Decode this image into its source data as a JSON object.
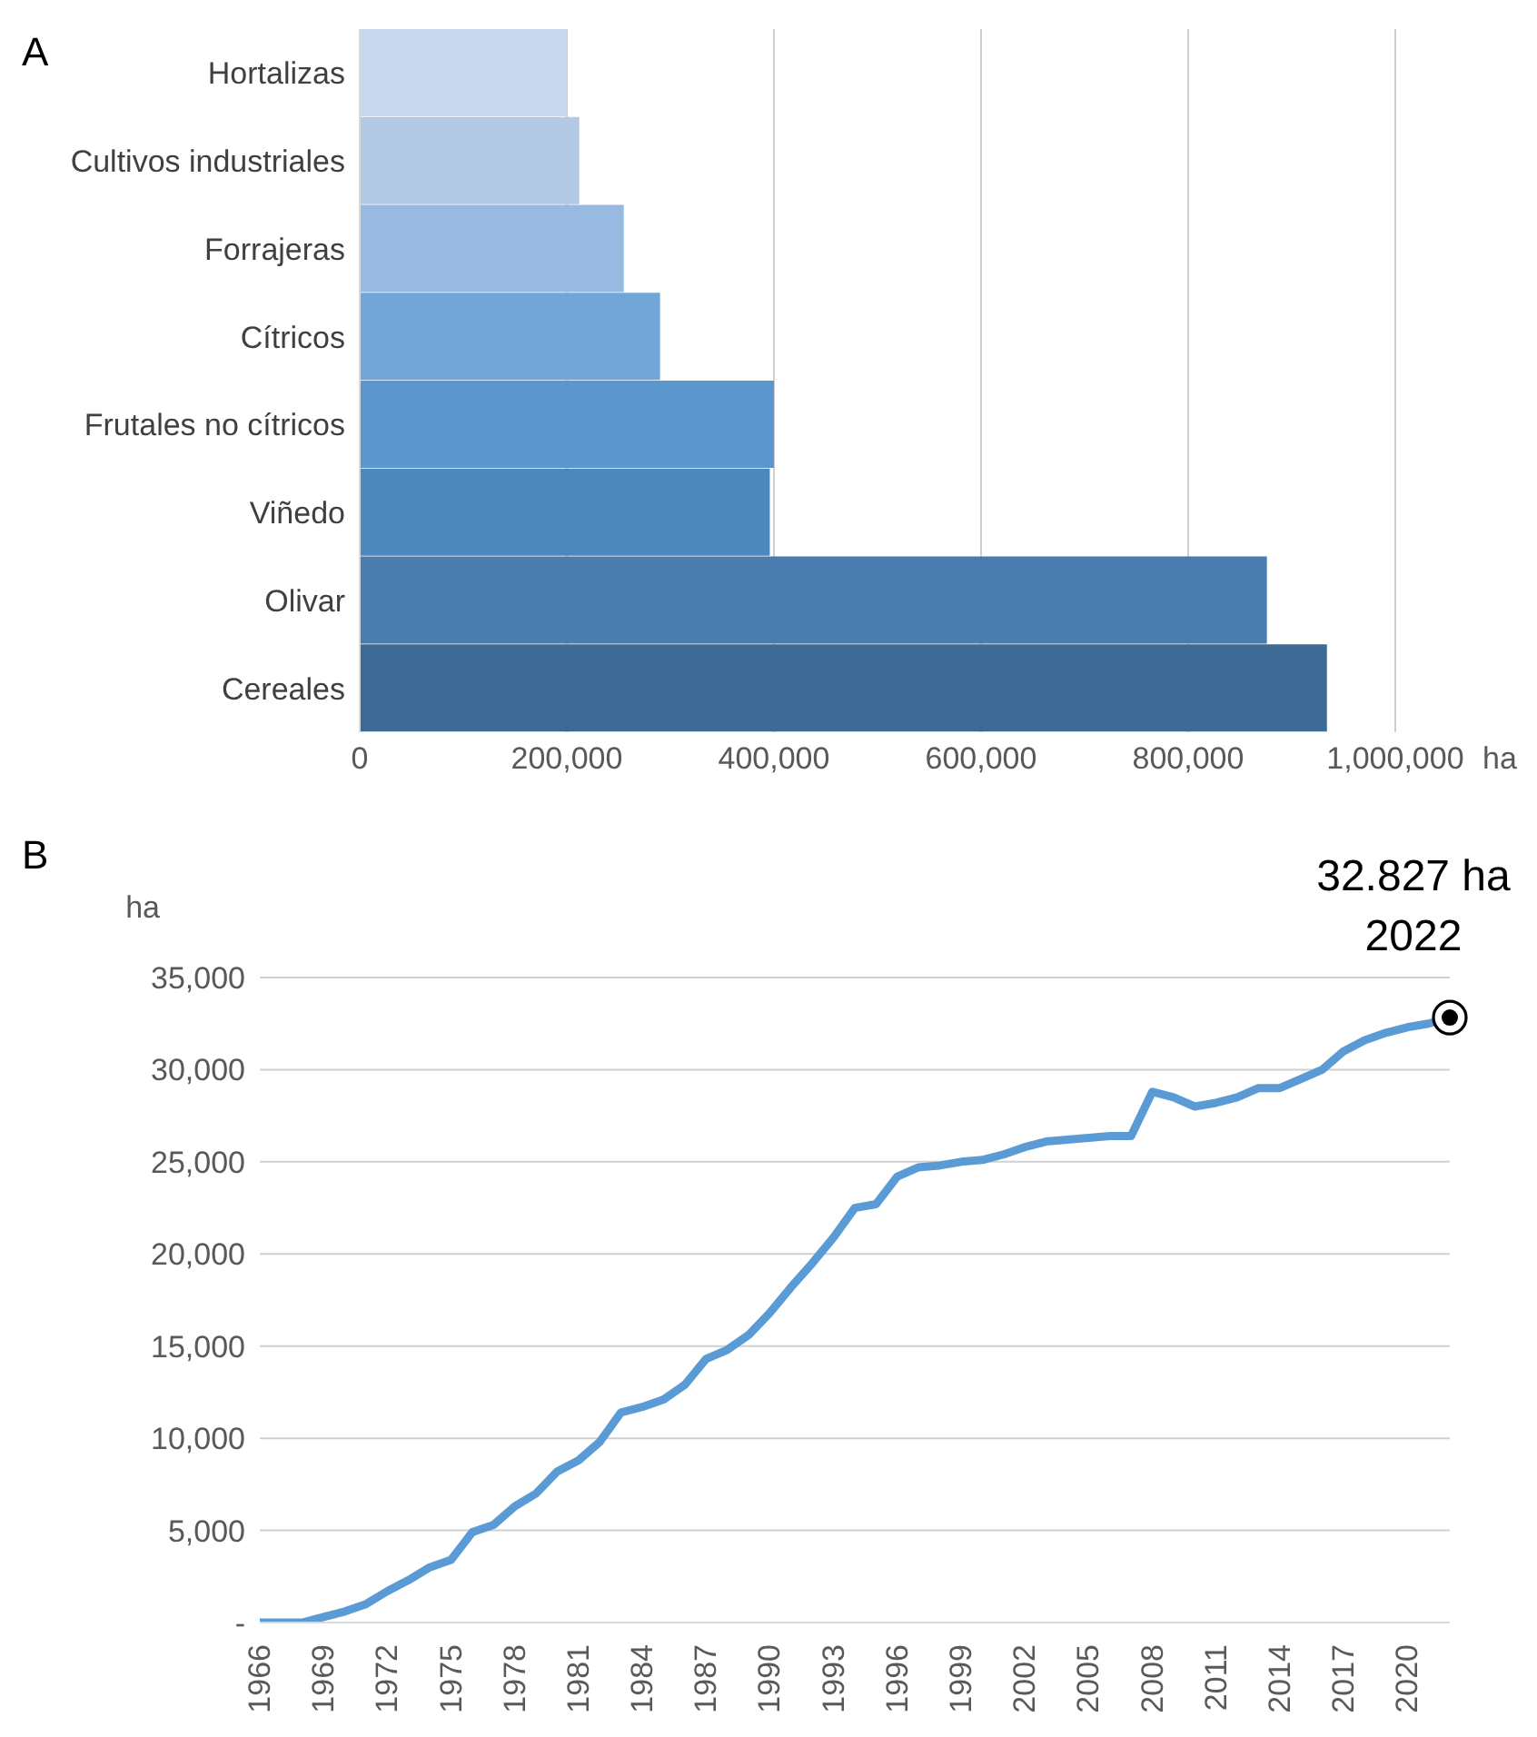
{
  "chart_data": [
    {
      "type": "bar",
      "orientation": "horizontal",
      "title": "A",
      "xlabel": "ha",
      "categories": [
        "Hortalizas",
        "Cultivos industriales",
        "Forrajeras",
        "Cítricos",
        "Frutales no cítricos",
        "Viñedo",
        "Olivar",
        "Cereales"
      ],
      "values": [
        200000,
        212000,
        255000,
        290000,
        400000,
        396000,
        876000,
        934000
      ],
      "colors": [
        "#c9d8ee",
        "#b3c9e5",
        "#98b9e0",
        "#73a6d8",
        "#5b97ce",
        "#4f88bc",
        "#497db0",
        "#3e6a95"
      ],
      "xlim": [
        0,
        1000000
      ],
      "xticks": [
        0,
        {
          "value": 200000,
          "label": "200,000"
        },
        {
          "value": 400000,
          "label": "400,000"
        },
        {
          "value": 600000,
          "label": "600,000"
        },
        {
          "value": 800000,
          "label": "800,000"
        },
        {
          "value": 1000000,
          "label": "1,000,000"
        }
      ],
      "grid": "x"
    },
    {
      "type": "line",
      "title": "B",
      "ylabel": "ha",
      "x": [
        1966,
        1967,
        1968,
        1969,
        1970,
        1971,
        1972,
        1973,
        1974,
        1975,
        1976,
        1977,
        1978,
        1979,
        1980,
        1981,
        1982,
        1983,
        1984,
        1985,
        1986,
        1987,
        1988,
        1989,
        1990,
        1991,
        1992,
        1993,
        1994,
        1995,
        1996,
        1997,
        1998,
        1999,
        2000,
        2001,
        2002,
        2003,
        2004,
        2005,
        2006,
        2007,
        2008,
        2009,
        2010,
        2011,
        2012,
        2013,
        2014,
        2015,
        2016,
        2017,
        2018,
        2019,
        2020,
        2021,
        2022
      ],
      "series": [
        {
          "color": "#5b9bd5",
          "values": [
            0,
            0,
            0,
            300,
            600,
            1000,
            1700,
            2300,
            3000,
            3400,
            4900,
            5300,
            6300,
            7000,
            8200,
            8800,
            9800,
            11400,
            11700,
            12100,
            12900,
            14300,
            14800,
            15600,
            16800,
            18200,
            19500,
            20900,
            22500,
            22700,
            24200,
            24700,
            24800,
            25000,
            25100,
            25400,
            25800,
            26100,
            26200,
            26300,
            26400,
            26400,
            28800,
            28500,
            28000,
            28200,
            28500,
            29000,
            29000,
            29500,
            30000,
            31000,
            31600,
            32000,
            32300,
            32500,
            32827
          ]
        }
      ],
      "xlim": [
        1966,
        2022
      ],
      "xticks": [
        1966,
        1969,
        1972,
        1975,
        1978,
        1981,
        1984,
        1987,
        1990,
        1993,
        1996,
        1999,
        2002,
        2005,
        2008,
        2011,
        2014,
        2017,
        2020
      ],
      "ylim": [
        0,
        35000
      ],
      "yticks": [
        {
          "value": 0,
          "label": "-"
        },
        {
          "value": 5000,
          "label": "5,000"
        },
        {
          "value": 10000,
          "label": "10,000"
        },
        {
          "value": 15000,
          "label": "15,000"
        },
        {
          "value": 20000,
          "label": "20,000"
        },
        {
          "value": 25000,
          "label": "25,000"
        },
        {
          "value": 30000,
          "label": "30,000"
        },
        {
          "value": 35000,
          "label": "35,000"
        }
      ],
      "grid": "y",
      "marker": "none",
      "line_style": "solid",
      "annotations": [
        {
          "text": "32.827 ha\n2022",
          "x": 2022,
          "y": 32827
        }
      ]
    }
  ]
}
